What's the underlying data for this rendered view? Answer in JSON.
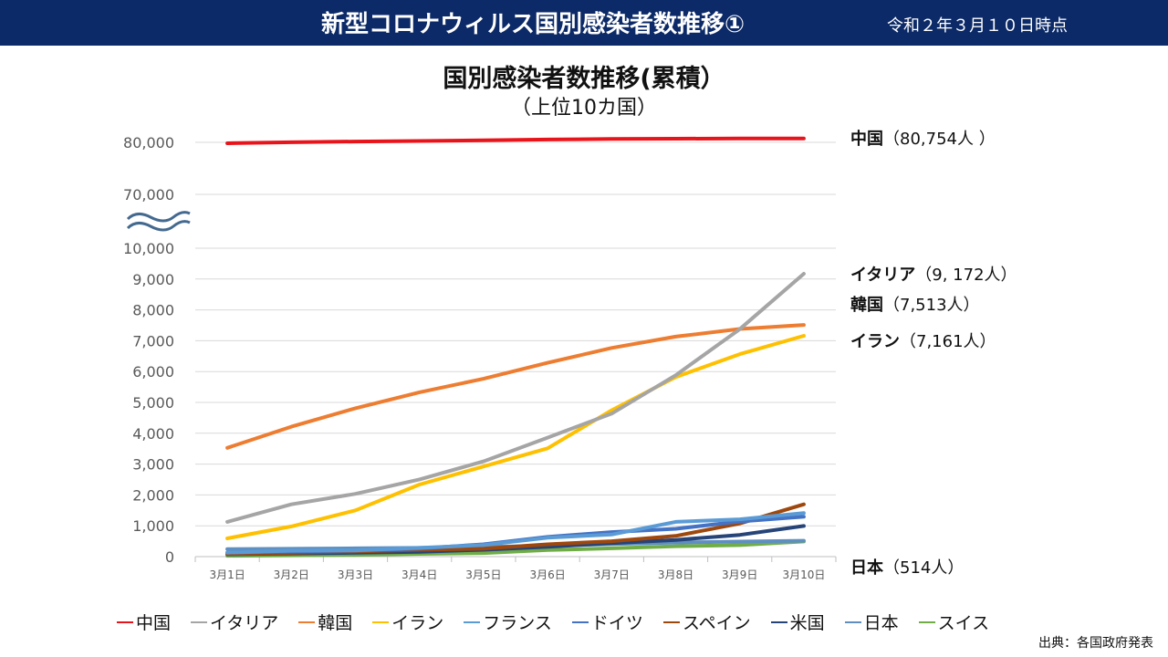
{
  "header": {
    "title": "新型コロナウィルス国別感染者数推移①",
    "date": "令和２年３月１０日時点"
  },
  "source": "出典：各国政府発表",
  "chart_data": {
    "type": "line",
    "title": "国別感染者数推移(累積）",
    "subtitle": "（上位10カ国）",
    "categories": [
      "3月1日",
      "3月2日",
      "3月3日",
      "3月4日",
      "3月5日",
      "3月6日",
      "3月7日",
      "3月8日",
      "3月9日",
      "3月10日"
    ],
    "y_ticks_lower": [
      "0",
      "1,000",
      "2,000",
      "3,000",
      "4,000",
      "5,000",
      "6,000",
      "7,000",
      "8,000",
      "9,000",
      "10,000"
    ],
    "y_ticks_upper": [
      "70,000",
      "80,000"
    ],
    "ylim_lower": [
      0,
      10000
    ],
    "axis_break": [
      10000,
      70000
    ],
    "ylim_upper": [
      70000,
      80000
    ],
    "grid": true,
    "legend_position": "bottom",
    "series": [
      {
        "name": "中国",
        "color": "#e8141b",
        "values": [
          79824,
          80026,
          80151,
          80270,
          80409,
          80552,
          80651,
          80695,
          80735,
          80754
        ]
      },
      {
        "name": "イタリア",
        "color": "#a5a5a5",
        "values": [
          1128,
          1694,
          2036,
          2502,
          3089,
          3858,
          4636,
          5883,
          7375,
          9172
        ]
      },
      {
        "name": "韓国",
        "color": "#ed7d31",
        "values": [
          3526,
          4212,
          4812,
          5328,
          5766,
          6284,
          6767,
          7134,
          7382,
          7513
        ]
      },
      {
        "name": "イラン",
        "color": "#ffc000",
        "values": [
          593,
          978,
          1501,
          2336,
          2922,
          3513,
          4747,
          5823,
          6566,
          7161
        ]
      },
      {
        "name": "フランス",
        "color": "#5b9bd5",
        "values": [
          130,
          191,
          204,
          285,
          377,
          613,
          716,
          1126,
          1209,
          1412
        ]
      },
      {
        "name": "ドイツ",
        "color": "#4472c4",
        "values": [
          130,
          165,
          196,
          262,
          400,
          639,
          795,
          902,
          1139,
          1296
        ]
      },
      {
        "name": "スペイン",
        "color": "#9e480e",
        "values": [
          84,
          120,
          165,
          222,
          259,
          400,
          500,
          673,
          1073,
          1695
        ]
      },
      {
        "name": "米国",
        "color": "#264478",
        "values": [
          74,
          100,
          124,
          158,
          221,
          319,
          435,
          541,
          704,
          994
        ]
      },
      {
        "name": "日本",
        "color": "#5e8fc0",
        "values": [
          243,
          254,
          268,
          284,
          317,
          348,
          407,
          455,
          488,
          514
        ]
      },
      {
        "name": "スイス",
        "color": "#70ad47",
        "values": [
          27,
          42,
          56,
          90,
          114,
          214,
          268,
          337,
          374,
          491
        ]
      }
    ],
    "annotations": [
      {
        "series": "中国",
        "text": "中国",
        "count": "（80,754人 ）"
      },
      {
        "series": "イタリア",
        "text": "イタリア",
        "count": "（9, 172人）"
      },
      {
        "series": "韓国",
        "text": "韓国",
        "count": "（7,513人）"
      },
      {
        "series": "イラン",
        "text": "イラン",
        "count": "（7,161人）"
      },
      {
        "series": "日本",
        "text": "日本",
        "count": "（514人）"
      }
    ]
  }
}
